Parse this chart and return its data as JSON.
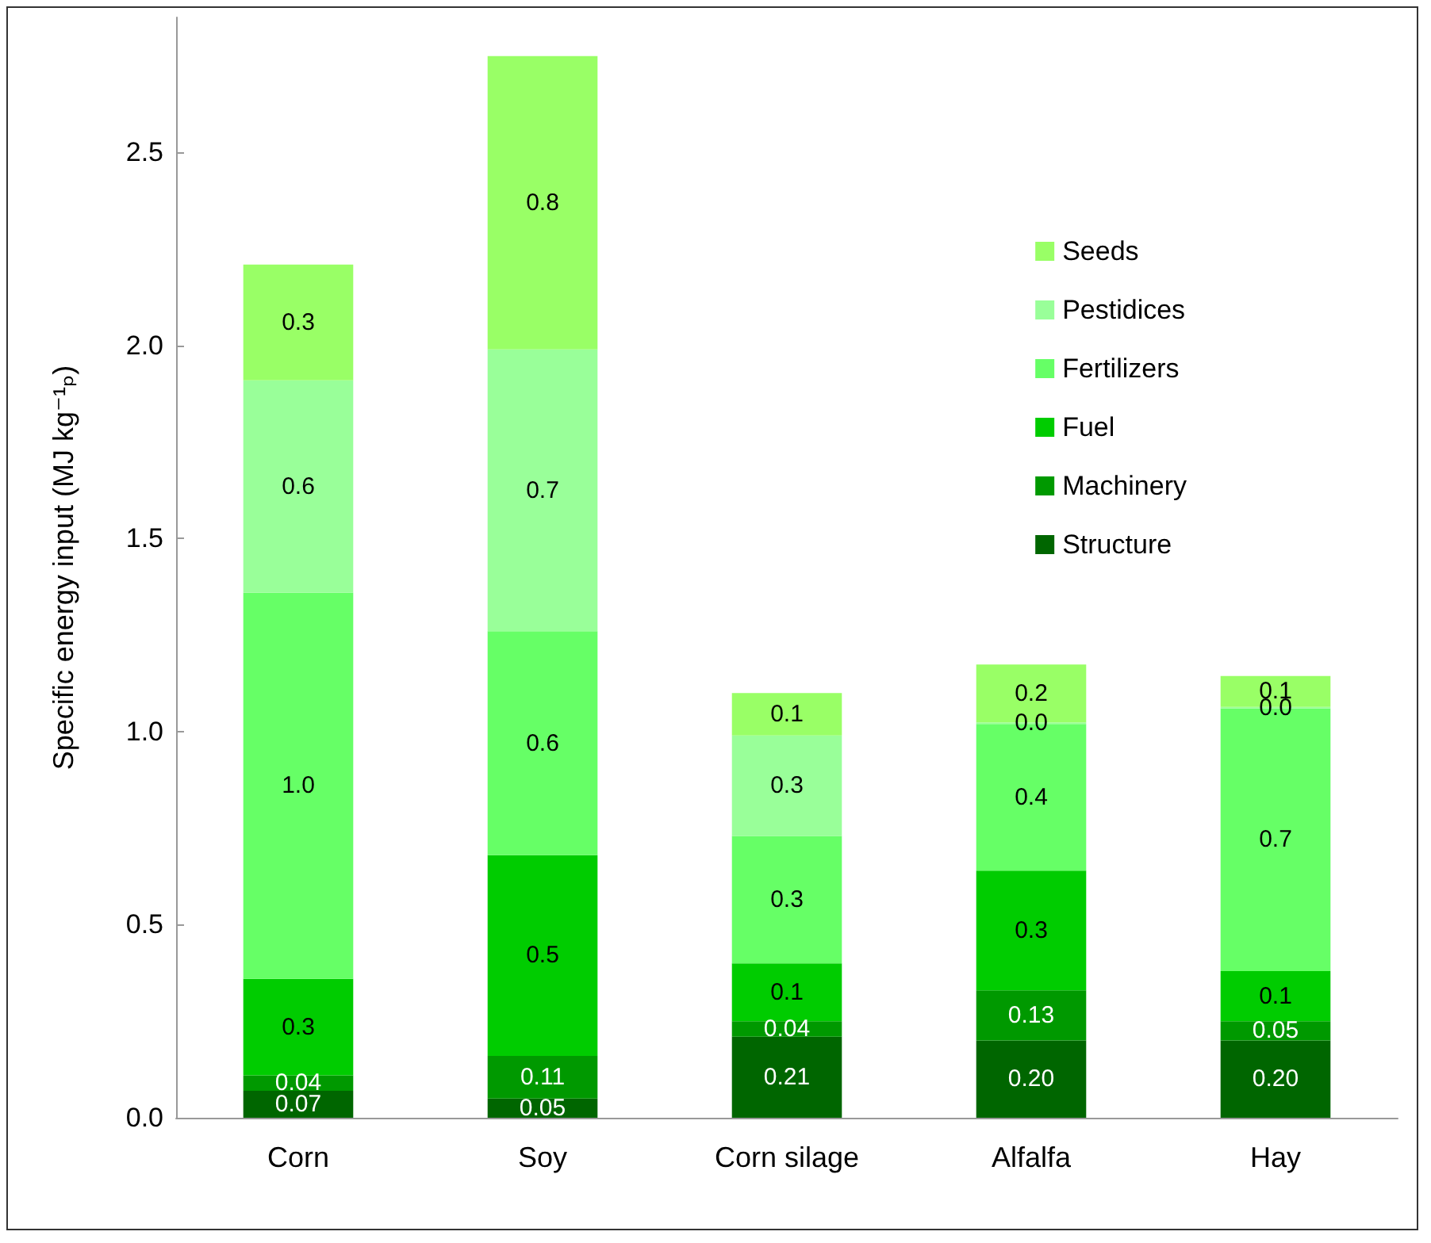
{
  "chart_data": {
    "type": "bar",
    "stacked": true,
    "ylabel": "Specific energy input (MJ kg⁻¹ₚ)",
    "categories": [
      "Corn",
      "Soy",
      "Corn silage",
      "Alfalfa",
      "Hay"
    ],
    "series": [
      {
        "name": "Structure",
        "color": "#006600",
        "values": [
          0.07,
          0.05,
          0.21,
          0.2,
          0.2
        ],
        "value_labels": [
          "0.07",
          "0.05",
          "0.21",
          "0.20",
          "0.20"
        ]
      },
      {
        "name": "Machinery",
        "color": "#009900",
        "values": [
          0.04,
          0.11,
          0.04,
          0.13,
          0.05
        ],
        "value_labels": [
          "0.04",
          "0.11",
          "0.04",
          "0.13",
          "0.05"
        ]
      },
      {
        "name": "Fuel",
        "color": "#00cc00",
        "values": [
          0.25,
          0.52,
          0.15,
          0.31,
          0.13
        ],
        "value_labels": [
          "0.3",
          "0.5",
          "0.1",
          "0.3",
          "0.1"
        ]
      },
      {
        "name": "Fertilizers",
        "color": "#66ff66",
        "values": [
          1.0,
          0.58,
          0.33,
          0.38,
          0.68
        ],
        "value_labels": [
          "1.0",
          "0.6",
          "0.3",
          "0.4",
          "0.7"
        ]
      },
      {
        "name": "Pestidices",
        "color": "#99ff99",
        "values": [
          0.55,
          0.73,
          0.26,
          0.004,
          0.004
        ],
        "value_labels": [
          "0.6",
          "0.7",
          "0.3",
          "0.0",
          "0.0"
        ]
      },
      {
        "name": "Seeds",
        "color": "#99ff66",
        "values": [
          0.3,
          0.76,
          0.11,
          0.15,
          0.08
        ],
        "value_labels": [
          "0.3",
          "0.8",
          "0.1",
          "0.2",
          "0.1"
        ]
      }
    ],
    "ylim": [
      0,
      2.85
    ],
    "yticks": [
      {
        "value": 0,
        "label": "0.0"
      },
      0.5,
      {
        "value": 1,
        "label": "1.0"
      },
      1.5,
      {
        "value": 2,
        "label": "2.0"
      },
      2.5
    ],
    "grid": false,
    "legend": "top right"
  }
}
